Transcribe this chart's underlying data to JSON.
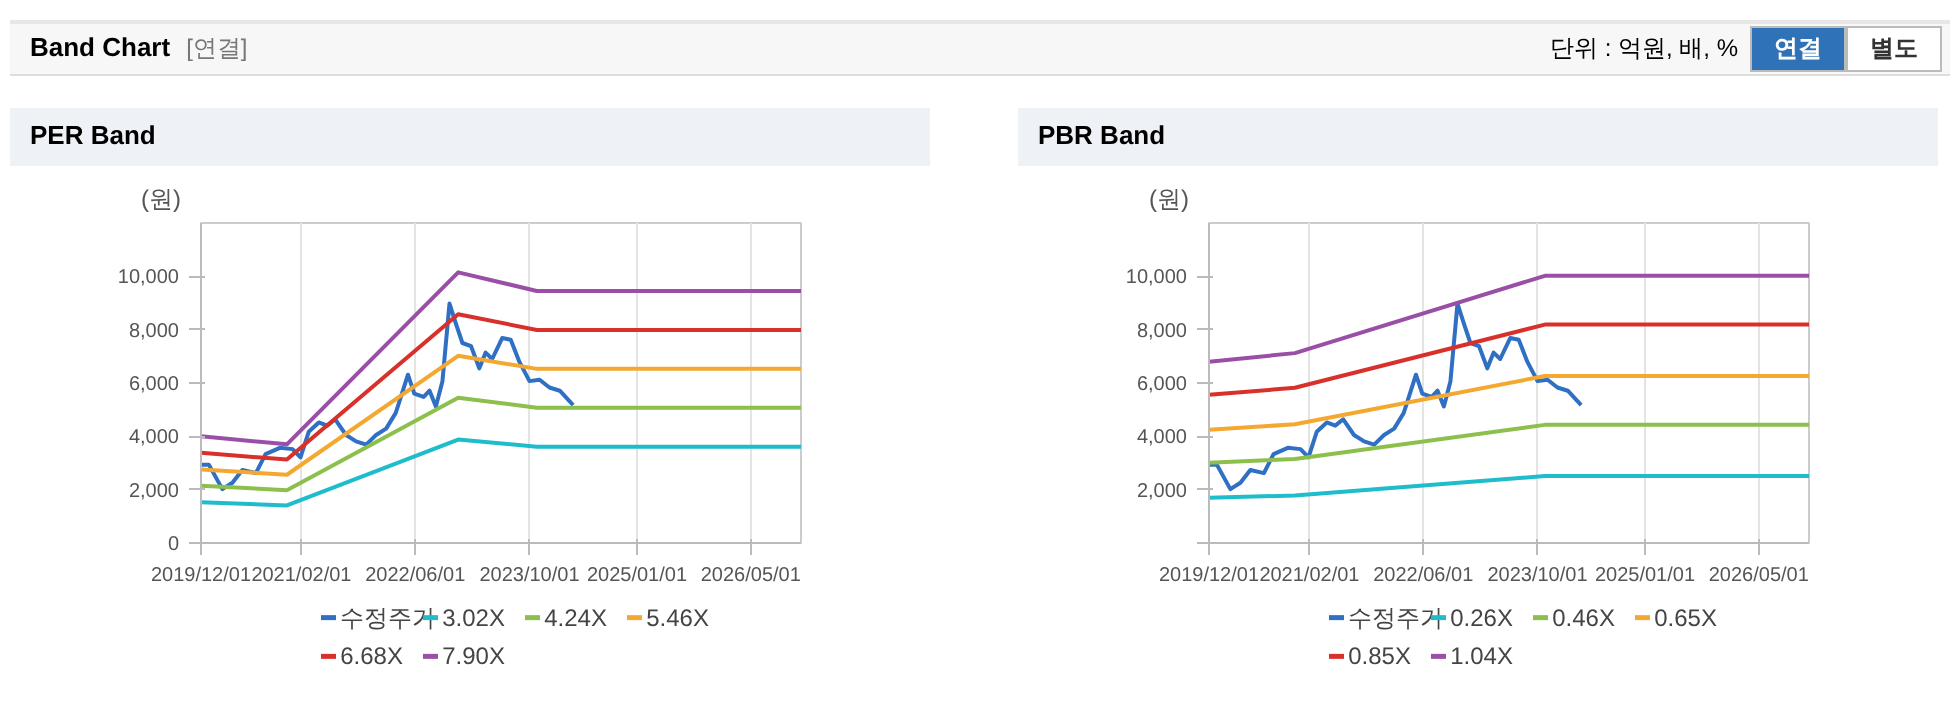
{
  "chart_data": [
    {
      "type": "other",
      "title": "Band Chart",
      "annotations": [
        "[연결]",
        "단위 : 억원, 배, %",
        "연결",
        "별도"
      ]
    },
    {
      "type": "line",
      "title": "PER Band",
      "ylabel": "(원)",
      "grid": "x",
      "legend": "bottom",
      "marker": "none",
      "line_style": "solid",
      "xlim": [
        "2019-12-01",
        "2026-12-01"
      ],
      "xticks": [
        {
          "value": "2019-12-01",
          "label": "2019/12/01"
        },
        {
          "value": "2021-02-01",
          "label": "2021/02/01"
        },
        {
          "value": "2022-06-01",
          "label": "2022/06/01"
        },
        {
          "value": "2023-10-01",
          "label": "2023/10/01"
        },
        {
          "value": "2025-01-01",
          "label": "2025/01/01"
        },
        {
          "value": "2026-05-01",
          "label": "2026/05/01"
        }
      ],
      "ylim": [
        0,
        12000
      ],
      "yticks": [
        0,
        {
          "value": 2000,
          "label": "2,000"
        },
        {
          "value": 4000,
          "label": "4,000"
        },
        {
          "value": 6000,
          "label": "6,000"
        },
        {
          "value": 8000,
          "label": "8,000"
        },
        {
          "value": 10000,
          "label": "10,000"
        }
      ],
      "series": [
        {
          "name": "수정주가",
          "color": "#2f6fc4",
          "x": [
            "2019-12-01",
            "2020-01-04",
            "2020-03-01",
            "2020-04-13",
            "2020-05-25",
            "2020-07-22",
            "2020-09-01",
            "2020-11-01",
            "2020-12-25",
            "2021-01-28",
            "2021-03-04",
            "2021-04-16",
            "2021-05-22",
            "2021-06-25",
            "2021-08-10",
            "2021-09-22",
            "2021-11-04",
            "2021-12-16",
            "2022-01-28",
            "2022-03-10",
            "2022-05-01",
            "2022-05-28",
            "2022-07-07",
            "2022-08-01",
            "2022-08-28",
            "2022-09-25",
            "2022-10-25",
            "2022-11-22",
            "2022-12-19",
            "2023-01-25",
            "2023-03-01",
            "2023-03-28",
            "2023-04-25",
            "2023-06-07",
            "2023-07-13",
            "2023-08-19",
            "2023-10-01",
            "2023-11-13",
            "2023-12-25",
            "2024-02-07",
            "2024-04-04"
          ],
          "values": [
            2930,
            2930,
            2020,
            2260,
            2740,
            2620,
            3330,
            3570,
            3520,
            3210,
            4170,
            4520,
            4400,
            4640,
            4050,
            3810,
            3690,
            4050,
            4290,
            4880,
            6310,
            5600,
            5480,
            5710,
            5120,
            6070,
            8980,
            8210,
            7500,
            7380,
            6550,
            7140,
            6900,
            7690,
            7620,
            6790,
            6070,
            6120,
            5830,
            5710,
            5170
          ]
        },
        {
          "name": "3.02X",
          "color": "#1fbccc",
          "x": [
            "2019-12-01",
            "2020-12-01",
            "2022-12-01",
            "2023-11-01",
            "2026-12-01"
          ],
          "values": [
            1530,
            1410,
            3880,
            3610,
            3610
          ]
        },
        {
          "name": "4.24X",
          "color": "#8dbf4c",
          "x": [
            "2019-12-01",
            "2020-12-01",
            "2022-12-01",
            "2023-11-01",
            "2026-12-01"
          ],
          "values": [
            2150,
            1980,
            5450,
            5070,
            5070
          ]
        },
        {
          "name": "5.46X",
          "color": "#f5a830",
          "x": [
            "2019-12-01",
            "2020-12-01",
            "2022-12-01",
            "2023-11-01",
            "2026-12-01"
          ],
          "values": [
            2760,
            2560,
            7020,
            6530,
            6530
          ]
        },
        {
          "name": "6.68X",
          "color": "#d8302a",
          "x": [
            "2019-12-01",
            "2020-12-01",
            "2022-12-01",
            "2023-11-01",
            "2026-12-01"
          ],
          "values": [
            3380,
            3130,
            8580,
            7990,
            7990
          ]
        },
        {
          "name": "7.90X",
          "color": "#9a4fa6",
          "x": [
            "2019-12-01",
            "2020-12-01",
            "2022-12-01",
            "2023-11-01",
            "2026-12-01"
          ],
          "values": [
            4000,
            3700,
            10150,
            9450,
            9450
          ]
        }
      ]
    },
    {
      "type": "line",
      "title": "PBR Band",
      "ylabel": "(원)",
      "grid": "x",
      "legend": "bottom",
      "marker": "none",
      "line_style": "solid",
      "xlim": [
        "2019-12-01",
        "2026-12-01"
      ],
      "xticks": [
        {
          "value": "2019-12-01",
          "label": "2019/12/01"
        },
        {
          "value": "2021-02-01",
          "label": "2021/02/01"
        },
        {
          "value": "2022-06-01",
          "label": "2022/06/01"
        },
        {
          "value": "2023-10-01",
          "label": "2023/10/01"
        },
        {
          "value": "2025-01-01",
          "label": "2025/01/01"
        },
        {
          "value": "2026-05-01",
          "label": "2026/05/01"
        }
      ],
      "ylim": [
        0,
        12000
      ],
      "yticks": [
        {
          "value": 0,
          "label": null
        },
        {
          "value": 2000,
          "label": "2,000"
        },
        {
          "value": 4000,
          "label": "4,000"
        },
        {
          "value": 6000,
          "label": "6,000"
        },
        {
          "value": 8000,
          "label": "8,000"
        },
        {
          "value": 10000,
          "label": "10,000"
        }
      ],
      "series": [
        {
          "name": "수정주가",
          "color": "#2f6fc4",
          "x": [
            "2019-12-01",
            "2020-01-04",
            "2020-03-01",
            "2020-04-13",
            "2020-05-25",
            "2020-07-22",
            "2020-09-01",
            "2020-11-01",
            "2020-12-25",
            "2021-01-28",
            "2021-03-04",
            "2021-04-16",
            "2021-05-22",
            "2021-06-25",
            "2021-08-10",
            "2021-09-22",
            "2021-11-04",
            "2021-12-16",
            "2022-01-28",
            "2022-03-10",
            "2022-05-01",
            "2022-05-28",
            "2022-07-07",
            "2022-08-01",
            "2022-08-28",
            "2022-09-25",
            "2022-10-25",
            "2022-11-22",
            "2022-12-19",
            "2023-01-25",
            "2023-03-01",
            "2023-03-28",
            "2023-04-25",
            "2023-06-07",
            "2023-07-13",
            "2023-08-19",
            "2023-10-01",
            "2023-11-13",
            "2023-12-25",
            "2024-02-07",
            "2024-04-04"
          ],
          "values": [
            2930,
            2930,
            2020,
            2260,
            2740,
            2620,
            3330,
            3570,
            3520,
            3210,
            4170,
            4520,
            4400,
            4640,
            4050,
            3810,
            3690,
            4050,
            4290,
            4880,
            6310,
            5600,
            5480,
            5710,
            5120,
            6070,
            8980,
            8210,
            7500,
            7380,
            6550,
            7140,
            6900,
            7690,
            7620,
            6790,
            6070,
            6120,
            5830,
            5710,
            5170
          ]
        },
        {
          "name": "0.26X",
          "color": "#1fbccc",
          "x": [
            "2019-12-01",
            "2020-12-01",
            "2023-11-01",
            "2026-12-01"
          ],
          "values": [
            1700,
            1780,
            2510,
            2510
          ]
        },
        {
          "name": "0.46X",
          "color": "#8dbf4c",
          "x": [
            "2019-12-01",
            "2020-12-01",
            "2023-11-01",
            "2026-12-01"
          ],
          "values": [
            3010,
            3150,
            4430,
            4430
          ]
        },
        {
          "name": "0.65X",
          "color": "#f5a830",
          "x": [
            "2019-12-01",
            "2020-12-01",
            "2023-11-01",
            "2026-12-01"
          ],
          "values": [
            4250,
            4450,
            6260,
            6260
          ]
        },
        {
          "name": "0.85X",
          "color": "#d8302a",
          "x": [
            "2019-12-01",
            "2020-12-01",
            "2023-11-01",
            "2026-12-01"
          ],
          "values": [
            5560,
            5820,
            8190,
            8190
          ]
        },
        {
          "name": "1.04X",
          "color": "#9a4fa6",
          "x": [
            "2019-12-01",
            "2020-12-01",
            "2023-11-01",
            "2026-12-01"
          ],
          "values": [
            6800,
            7120,
            10020,
            10020
          ]
        }
      ]
    }
  ]
}
